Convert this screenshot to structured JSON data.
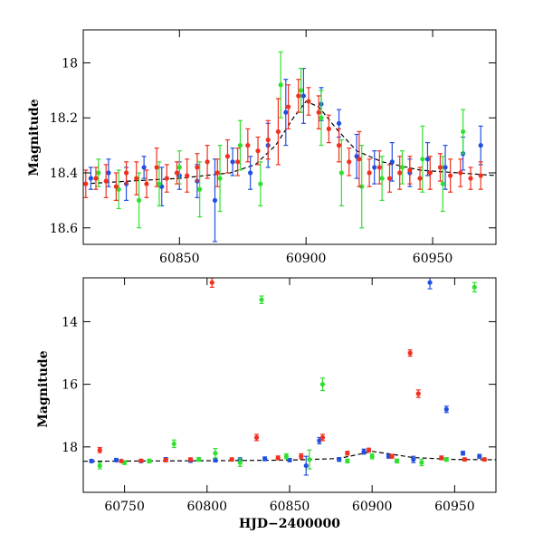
{
  "chart_data": [
    {
      "type": "scatter",
      "ylabel": "Magnitude",
      "xlim": [
        60812,
        60975
      ],
      "ylim": [
        18.66,
        17.88
      ],
      "y_inverted": true,
      "xticks": [
        60850,
        60900,
        60950
      ],
      "xtick_labels": [
        "60850",
        "60900",
        "60950"
      ],
      "yticks": [
        18,
        18.2,
        18.4,
        18.6
      ],
      "ytick_labels": [
        "18",
        "18.2",
        "18.4",
        "18.6"
      ],
      "series_colors": [
        "#2050e0",
        "#30e030",
        "#f03020"
      ],
      "model_curve": {
        "x": [
          60812,
          60830,
          60850,
          60870,
          60880,
          60888,
          60895,
          60900,
          60905,
          60912,
          60920,
          60930,
          60945,
          60960,
          60975
        ],
        "y": [
          18.44,
          18.43,
          18.42,
          18.4,
          18.37,
          18.3,
          18.2,
          18.14,
          18.16,
          18.24,
          18.32,
          18.36,
          18.39,
          18.4,
          18.41
        ]
      },
      "series": [
        {
          "x": [
            60815,
            60822,
            60829,
            60836,
            60843,
            60850,
            60857,
            60864,
            60871,
            60878,
            60885,
            60892,
            60899,
            60906,
            60913,
            60920,
            60927,
            60934,
            60941,
            60948,
            60955,
            60962,
            60969
          ],
          "y": [
            18.42,
            18.4,
            18.44,
            18.38,
            18.45,
            18.41,
            18.43,
            18.5,
            18.36,
            18.4,
            18.3,
            18.18,
            18.12,
            18.15,
            18.22,
            18.34,
            18.38,
            18.36,
            18.4,
            18.35,
            18.38,
            18.33,
            18.3
          ],
          "err": [
            0.04,
            0.05,
            0.06,
            0.04,
            0.07,
            0.05,
            0.06,
            0.15,
            0.05,
            0.06,
            0.08,
            0.12,
            0.1,
            0.06,
            0.05,
            0.08,
            0.06,
            0.07,
            0.05,
            0.06,
            0.08,
            0.06,
            0.07
          ]
        },
        {
          "x": [
            60818,
            60826,
            60834,
            60842,
            60850,
            60858,
            60866,
            60874,
            60882,
            60890,
            60898,
            60906,
            60914,
            60922,
            60930,
            60938,
            60946,
            60954,
            60962
          ],
          "y": [
            18.4,
            18.46,
            18.5,
            18.44,
            18.38,
            18.46,
            18.42,
            18.3,
            18.44,
            18.08,
            18.1,
            18.2,
            18.4,
            18.45,
            18.42,
            18.38,
            18.35,
            18.44,
            18.25
          ],
          "err": [
            0.05,
            0.07,
            0.1,
            0.08,
            0.06,
            0.1,
            0.12,
            0.09,
            0.08,
            0.12,
            0.08,
            0.1,
            0.12,
            0.15,
            0.08,
            0.06,
            0.12,
            0.1,
            0.08
          ]
        },
        {
          "x": [
            60813,
            60817,
            60821,
            60825,
            60829,
            60833,
            60837,
            60841,
            60845,
            60849,
            60853,
            60857,
            60861,
            60865,
            60869,
            60873,
            60877,
            60881,
            60885,
            60889,
            60893,
            60897,
            60901,
            60905,
            60909,
            60913,
            60917,
            60921,
            60925,
            60929,
            60933,
            60937,
            60941,
            60945,
            60949,
            60953,
            60957,
            60961,
            60965,
            60969
          ],
          "y": [
            18.44,
            18.42,
            18.43,
            18.45,
            18.4,
            18.42,
            18.44,
            18.38,
            18.42,
            18.4,
            18.41,
            18.38,
            18.36,
            18.4,
            18.34,
            18.36,
            18.3,
            18.32,
            18.28,
            18.25,
            18.16,
            18.12,
            18.14,
            18.18,
            18.24,
            18.3,
            18.36,
            18.35,
            18.4,
            18.38,
            18.42,
            18.4,
            18.39,
            18.42,
            18.4,
            18.38,
            18.41,
            18.4,
            18.42,
            18.41
          ],
          "err": [
            0.05,
            0.04,
            0.06,
            0.05,
            0.04,
            0.06,
            0.05,
            0.07,
            0.05,
            0.04,
            0.06,
            0.05,
            0.06,
            0.05,
            0.06,
            0.05,
            0.06,
            0.05,
            0.07,
            0.12,
            0.08,
            0.06,
            0.05,
            0.06,
            0.05,
            0.06,
            0.05,
            0.1,
            0.05,
            0.06,
            0.05,
            0.06,
            0.05,
            0.04,
            0.06,
            0.05,
            0.06,
            0.05,
            0.04,
            0.05
          ]
        }
      ]
    },
    {
      "type": "scatter",
      "xlabel": "HJD−2400000",
      "ylabel": "Magnitude",
      "xlim": [
        60725,
        60975
      ],
      "ylim": [
        19.45,
        12.6
      ],
      "y_inverted": true,
      "xticks": [
        60750,
        60800,
        60850,
        60900,
        60950
      ],
      "xtick_labels": [
        "60750",
        "60800",
        "60850",
        "60900",
        "60950"
      ],
      "yticks": [
        14,
        16,
        18
      ],
      "ytick_labels": [
        "14",
        "16",
        "18"
      ],
      "series_colors": [
        "#2050e0",
        "#30e030",
        "#f03020"
      ],
      "model_curve": {
        "x": [
          60725,
          60760,
          60800,
          60850,
          60880,
          60895,
          60900,
          60910,
          60925,
          60950,
          60975
        ],
        "y": [
          18.46,
          18.45,
          18.44,
          18.42,
          18.37,
          18.2,
          18.14,
          18.22,
          18.34,
          18.4,
          18.41
        ]
      },
      "series": [
        {
          "x": [
            60730,
            60745,
            60760,
            60775,
            60790,
            60805,
            60820,
            60835,
            60850,
            60860,
            60868,
            60880,
            60895,
            60910,
            60925,
            60935,
            60945,
            60955,
            60965
          ],
          "y": [
            18.45,
            18.42,
            18.45,
            18.4,
            18.44,
            18.42,
            18.4,
            18.38,
            18.42,
            18.6,
            17.8,
            18.4,
            18.15,
            18.3,
            18.4,
            12.75,
            16.8,
            18.2,
            18.3
          ],
          "err": [
            0.05,
            0.05,
            0.05,
            0.06,
            0.05,
            0.06,
            0.05,
            0.06,
            0.05,
            0.3,
            0.1,
            0.06,
            0.08,
            0.06,
            0.1,
            0.2,
            0.1,
            0.06,
            0.06
          ]
        },
        {
          "x": [
            60735,
            60750,
            60765,
            60780,
            60795,
            60805,
            60820,
            60833,
            60848,
            60862,
            60870,
            60885,
            60900,
            60915,
            60930,
            60945,
            60962
          ],
          "y": [
            18.6,
            18.5,
            18.45,
            17.9,
            18.4,
            18.2,
            18.5,
            13.3,
            18.3,
            18.4,
            16.0,
            18.45,
            18.3,
            18.45,
            18.5,
            18.4,
            12.9
          ],
          "err": [
            0.1,
            0.06,
            0.06,
            0.12,
            0.06,
            0.15,
            0.12,
            0.12,
            0.08,
            0.3,
            0.2,
            0.06,
            0.08,
            0.06,
            0.1,
            0.06,
            0.15
          ]
        },
        {
          "x": [
            60735,
            60748,
            60760,
            60775,
            60790,
            60803,
            60815,
            60830,
            60843,
            60857,
            60870,
            60885,
            60898,
            60912,
            60923,
            60928,
            60942,
            60956,
            60968
          ],
          "y": [
            18.1,
            18.45,
            18.44,
            18.42,
            18.4,
            12.75,
            18.4,
            17.7,
            18.35,
            18.3,
            17.7,
            18.2,
            18.1,
            18.3,
            15.0,
            16.3,
            18.35,
            18.4,
            18.4
          ],
          "err": [
            0.08,
            0.04,
            0.04,
            0.05,
            0.05,
            0.15,
            0.05,
            0.1,
            0.06,
            0.08,
            0.1,
            0.06,
            0.06,
            0.06,
            0.1,
            0.12,
            0.06,
            0.05,
            0.05
          ]
        }
      ]
    }
  ]
}
